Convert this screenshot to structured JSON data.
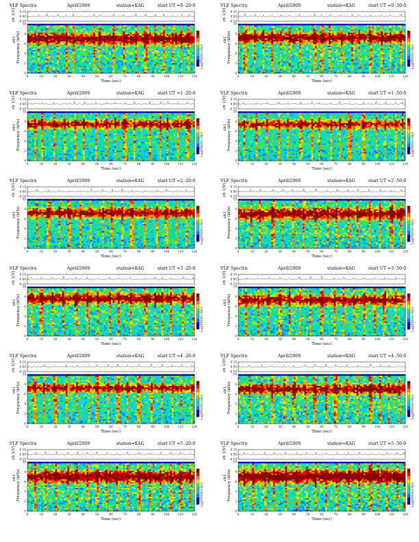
{
  "figure_title": "VLF Spectra",
  "date": "April/2009",
  "station": "station=KAG",
  "panel_titles": [
    "start  UT  =0 :20:0",
    "start  UT  =0 :50:0",
    "start  UT  =1 :20:0",
    "start  UT  =1 :50:0",
    "start  UT  =2 :20:0",
    "start  UT  =2 :50:0",
    "start  UT  =3 :20:0",
    "start  UT  =3 :50:0",
    "start  UT  =4 :20:0",
    "start  UT  =4 :50:0",
    "start  UT  =5 :20:0",
    "start  UT  =5 :50:0"
  ],
  "labels": {
    "waveform_ylabel": "ch 1(V)",
    "spectrum_ylabel_prefix": "ch1",
    "spectrum_ylabel": "Frequency  (kHz)",
    "xlabel": "Time  (sec)",
    "colorbar_label": "Log(PSD(V/√Hz))"
  },
  "colors": {
    "colormap": [
      "#00008b",
      "#0000ff",
      "#0080ff",
      "#00ccff",
      "#00e0a0",
      "#60e040",
      "#e8e800",
      "#ff8000",
      "#ff0000",
      "#8b0000"
    ]
  },
  "chart_data": [
    {
      "type": "heatmap",
      "panel": 1,
      "title": "start  UT  =0 :20:0",
      "x": [
        0,
        10,
        20,
        30,
        40,
        50,
        60,
        70,
        80,
        90,
        100,
        110,
        120
      ],
      "x_tick_labels": [
        "0",
        "10",
        "20",
        "30",
        "40",
        "50",
        "60",
        "70",
        "80",
        "90",
        "100",
        "110",
        "120"
      ],
      "y_ticks": [
        0,
        2,
        4,
        6,
        8,
        10
      ],
      "xlim": [
        0,
        120
      ],
      "ylim": [
        0,
        10
      ],
      "xlabel": "Time  (sec)",
      "ylabel": "Frequency  (kHz)",
      "waveform_ylim": [
        -0.1,
        0.1
      ],
      "waveform_ticks": [
        "-0.10",
        "0.00",
        "0.10"
      ],
      "colorbar": "Log(PSD(V/√Hz))",
      "band_center_khz": 7.0,
      "band_half_width_khz": 1.6,
      "band_strength": 0.9,
      "noise_level": 0.45,
      "spikes_at_sec": [
        8,
        14,
        22,
        28,
        33,
        48,
        52,
        62,
        69,
        78,
        85,
        92,
        98,
        104,
        111,
        116
      ]
    },
    {
      "type": "heatmap",
      "panel": 2,
      "title": "start  UT  =0 :50:0",
      "x": [
        0,
        10,
        20,
        30,
        40,
        50,
        60,
        70,
        80,
        90,
        100,
        110,
        120
      ],
      "x_tick_labels": [
        "0",
        "10",
        "20",
        "30",
        "40",
        "50",
        "60",
        "70",
        "80",
        "90",
        "100",
        "110",
        "120"
      ],
      "y_ticks": [
        0,
        2,
        4,
        6,
        8,
        10
      ],
      "xlim": [
        0,
        120
      ],
      "ylim": [
        0,
        10
      ],
      "xlabel": "Time  (sec)",
      "ylabel": "Frequency  (kHz)",
      "waveform_ylim": [
        -0.1,
        0.1
      ],
      "waveform_ticks": [
        "-0.10",
        "0.00",
        "0.10"
      ],
      "colorbar": "Log(PSD(V/√Hz))",
      "band_center_khz": 7.2,
      "band_half_width_khz": 1.5,
      "band_strength": 0.85,
      "noise_level": 0.45,
      "spikes_at_sec": [
        5,
        12,
        18,
        24,
        31,
        37,
        44,
        55,
        60,
        66,
        74,
        82,
        87,
        95,
        103,
        109,
        117
      ]
    },
    {
      "type": "heatmap",
      "panel": 3,
      "title": "start  UT  =1 :20:0",
      "x": [
        0,
        10,
        20,
        30,
        40,
        50,
        60,
        70,
        80,
        90,
        100,
        110,
        120
      ],
      "x_tick_labels": [
        "0",
        "10",
        "20",
        "30",
        "40",
        "50",
        "60",
        "70",
        "80",
        "90",
        "100",
        "110",
        "120"
      ],
      "y_ticks": [
        0,
        2,
        4,
        6,
        8,
        10
      ],
      "xlim": [
        0,
        120
      ],
      "ylim": [
        0,
        10
      ],
      "xlabel": "Time  (sec)",
      "ylabel": "Frequency  (kHz)",
      "waveform_ylim": [
        -0.1,
        0.1
      ],
      "waveform_ticks": [
        "-0.10",
        "0.00",
        "0.10"
      ],
      "colorbar": "Log(PSD(V/√Hz))",
      "band_center_khz": 7.4,
      "band_half_width_khz": 1.3,
      "band_strength": 0.75,
      "noise_level": 0.3,
      "spikes_at_sec": [
        6,
        11,
        19,
        27,
        34,
        41,
        49,
        57,
        63,
        70,
        77,
        88,
        96,
        101,
        108,
        115
      ]
    },
    {
      "type": "heatmap",
      "panel": 4,
      "title": "start  UT  =1 :50:0",
      "x": [
        0,
        10,
        20,
        30,
        40,
        50,
        60,
        70,
        80,
        90,
        100,
        110,
        120
      ],
      "x_tick_labels": [
        "0",
        "10",
        "20",
        "30",
        "40",
        "50",
        "60",
        "70",
        "80",
        "90",
        "100",
        "110",
        "120"
      ],
      "y_ticks": [
        0,
        2,
        4,
        6,
        8,
        10
      ],
      "xlim": [
        0,
        120
      ],
      "ylim": [
        0,
        10
      ],
      "xlabel": "Time  (sec)",
      "ylabel": "Frequency  (kHz)",
      "waveform_ylim": [
        -0.1,
        0.1
      ],
      "waveform_ticks": [
        "-0.10",
        "0.00",
        "0.10"
      ],
      "colorbar": "Log(PSD(V/√Hz))",
      "band_center_khz": 7.4,
      "band_half_width_khz": 1.3,
      "band_strength": 0.7,
      "noise_level": 0.3,
      "spikes_at_sec": [
        4,
        13,
        21,
        29,
        36,
        45,
        53,
        58,
        67,
        73,
        80,
        90,
        99,
        106,
        113,
        118
      ]
    },
    {
      "type": "heatmap",
      "panel": 5,
      "title": "start  UT  =2 :20:0",
      "x": [
        0,
        10,
        20,
        30,
        40,
        50,
        60,
        70,
        80,
        90,
        100,
        110,
        120
      ],
      "x_tick_labels": [
        "0",
        "10",
        "20",
        "30",
        "40",
        "50",
        "60",
        "70",
        "80",
        "90",
        "100",
        "110",
        "120"
      ],
      "y_ticks": [
        0,
        2,
        4,
        6,
        8,
        10
      ],
      "xlim": [
        0,
        120
      ],
      "ylim": [
        0,
        10
      ],
      "xlabel": "Time  (sec)",
      "ylabel": "Frequency  (kHz)",
      "waveform_ylim": [
        -0.1,
        0.1
      ],
      "waveform_ticks": [
        "-0.10",
        "0.00",
        "0.10"
      ],
      "colorbar": "Log(PSD(V/√Hz))",
      "band_center_khz": 7.2,
      "band_half_width_khz": 1.4,
      "band_strength": 0.8,
      "noise_level": 0.3,
      "spikes_at_sec": [
        7,
        15,
        23,
        30,
        38,
        46,
        54,
        61,
        68,
        75,
        84,
        93,
        100,
        107,
        114
      ]
    },
    {
      "type": "heatmap",
      "panel": 6,
      "title": "start  UT  =2 :50:0",
      "x": [
        0,
        10,
        20,
        30,
        40,
        50,
        60,
        70,
        80,
        90,
        100,
        110,
        120
      ],
      "x_tick_labels": [
        "0",
        "10",
        "20",
        "30",
        "40",
        "50",
        "60",
        "70",
        "80",
        "90",
        "100",
        "110",
        "120"
      ],
      "y_ticks": [
        0,
        2,
        4,
        6,
        8,
        10
      ],
      "xlim": [
        0,
        120
      ],
      "ylim": [
        0,
        10
      ],
      "xlabel": "Time  (sec)",
      "ylabel": "Frequency  (kHz)",
      "waveform_ylim": [
        -0.1,
        0.1
      ],
      "waveform_ticks": [
        "-0.10",
        "0.00",
        "0.10"
      ],
      "colorbar": "Log(PSD(V/√Hz))",
      "band_center_khz": 7.0,
      "band_half_width_khz": 1.6,
      "band_strength": 0.85,
      "noise_level": 0.45,
      "spikes_at_sec": [
        9,
        16,
        25,
        32,
        39,
        47,
        56,
        64,
        71,
        79,
        86,
        94,
        102,
        110,
        117
      ]
    },
    {
      "type": "heatmap",
      "panel": 7,
      "title": "start  UT  =3 :20:0",
      "x": [
        0,
        10,
        20,
        30,
        40,
        50,
        60,
        70,
        80,
        90,
        100,
        110,
        120
      ],
      "x_tick_labels": [
        "0",
        "10",
        "20",
        "30",
        "40",
        "50",
        "60",
        "70",
        "80",
        "90",
        "100",
        "110",
        "120"
      ],
      "y_ticks": [
        0,
        2,
        4,
        6,
        8,
        10
      ],
      "xlim": [
        0,
        120
      ],
      "ylim": [
        0,
        10
      ],
      "xlabel": "Time  (sec)",
      "ylabel": "Frequency  (kHz)",
      "waveform_ylim": [
        -0.1,
        0.1
      ],
      "waveform_ticks": [
        "-0.10",
        "0.00",
        "0.10"
      ],
      "colorbar": "Log(PSD(V/√Hz))",
      "band_center_khz": 7.6,
      "band_half_width_khz": 1.5,
      "band_strength": 0.85,
      "noise_level": 0.4,
      "spikes_at_sec": [
        3,
        10,
        18,
        26,
        35,
        43,
        51,
        59,
        66,
        74,
        85,
        92,
        97,
        103,
        112,
        119
      ]
    },
    {
      "type": "heatmap",
      "panel": 8,
      "title": "start  UT  =3 :50:0",
      "x": [
        0,
        10,
        20,
        30,
        40,
        50,
        60,
        70,
        80,
        90,
        100,
        110,
        120
      ],
      "x_tick_labels": [
        "0",
        "10",
        "20",
        "30",
        "40",
        "50",
        "60",
        "70",
        "80",
        "90",
        "100",
        "110",
        "120"
      ],
      "y_ticks": [
        0,
        2,
        4,
        6,
        8,
        10
      ],
      "xlim": [
        0,
        120
      ],
      "ylim": [
        0,
        10
      ],
      "xlabel": "Time  (sec)",
      "ylabel": "Frequency  (kHz)",
      "waveform_ylim": [
        -0.1,
        0.1
      ],
      "waveform_ticks": [
        "-0.10",
        "0.00",
        "0.10"
      ],
      "colorbar": "Log(PSD(V/√Hz))",
      "band_center_khz": 7.3,
      "band_half_width_khz": 1.5,
      "band_strength": 0.8,
      "noise_level": 0.4,
      "spikes_at_sec": [
        6,
        14,
        22,
        30,
        37,
        44,
        52,
        60,
        69,
        76,
        83,
        91,
        98,
        105,
        113
      ]
    },
    {
      "type": "heatmap",
      "panel": 9,
      "title": "start  UT  =4 :20:0",
      "x": [
        0,
        10,
        20,
        30,
        40,
        50,
        60,
        70,
        80,
        90,
        100,
        110,
        120
      ],
      "x_tick_labels": [
        "0",
        "10",
        "20",
        "30",
        "40",
        "50",
        "60",
        "70",
        "80",
        "90",
        "100",
        "110",
        "120"
      ],
      "y_ticks": [
        0,
        2,
        4,
        6,
        8,
        10
      ],
      "xlim": [
        0,
        120
      ],
      "ylim": [
        0,
        10
      ],
      "xlabel": "Time  (sec)",
      "ylabel": "Frequency  (kHz)",
      "waveform_ylim": [
        -0.1,
        0.1
      ],
      "waveform_ticks": [
        "-0.10",
        "0.00",
        "0.10"
      ],
      "colorbar": "Log(PSD(V/√Hz))",
      "band_center_khz": 7.2,
      "band_half_width_khz": 1.2,
      "band_strength": 0.75,
      "noise_level": 0.35,
      "spikes_at_sec": [
        5,
        12,
        20,
        28,
        36,
        44,
        50,
        58,
        65,
        72,
        80,
        89,
        97,
        104,
        111,
        118
      ]
    },
    {
      "type": "heatmap",
      "panel": 10,
      "title": "start  UT  =4 :50:0",
      "x": [
        0,
        10,
        20,
        30,
        40,
        50,
        60,
        70,
        80,
        90,
        100,
        110,
        120
      ],
      "x_tick_labels": [
        "0",
        "10",
        "20",
        "30",
        "40",
        "50",
        "60",
        "70",
        "80",
        "90",
        "100",
        "110",
        "120"
      ],
      "y_ticks": [
        0,
        2,
        4,
        6,
        8,
        10
      ],
      "xlim": [
        0,
        120
      ],
      "ylim": [
        0,
        10
      ],
      "xlabel": "Time  (sec)",
      "ylabel": "Frequency  (kHz)",
      "waveform_ylim": [
        -0.1,
        0.1
      ],
      "waveform_ticks": [
        "-0.10",
        "0.00",
        "0.10"
      ],
      "colorbar": "Log(PSD(V/√Hz))",
      "band_center_khz": 7.0,
      "band_half_width_khz": 1.4,
      "band_strength": 0.8,
      "noise_level": 0.5,
      "spikes_at_sec": [
        8,
        17,
        24,
        33,
        40,
        48,
        55,
        63,
        70,
        78,
        86,
        95,
        102,
        108,
        116
      ]
    },
    {
      "type": "heatmap",
      "panel": 11,
      "title": "start  UT  =5 :20:0",
      "x": [
        0,
        10,
        20,
        30,
        40,
        50,
        60,
        70,
        80,
        90,
        100,
        110,
        120
      ],
      "x_tick_labels": [
        "0",
        "10",
        "20",
        "30",
        "40",
        "50",
        "60",
        "70",
        "80",
        "90",
        "100",
        "110",
        "120"
      ],
      "y_ticks": [
        0,
        2,
        4,
        6,
        8,
        10
      ],
      "xlim": [
        0,
        120
      ],
      "ylim": [
        0,
        10
      ],
      "xlabel": "Time  (sec)",
      "ylabel": "Frequency  (kHz)",
      "waveform_ylim": [
        -0.1,
        0.1
      ],
      "waveform_ticks": [
        "-0.10",
        "0.00",
        "0.10"
      ],
      "colorbar": "Log(PSD(V/√Hz))",
      "band_center_khz": 7.0,
      "band_half_width_khz": 1.7,
      "band_strength": 0.9,
      "noise_level": 0.5,
      "spikes_at_sec": [
        6,
        13,
        21,
        29,
        36,
        43,
        50,
        57,
        64,
        72,
        80,
        88,
        96,
        103,
        110,
        117
      ]
    },
    {
      "type": "heatmap",
      "panel": 12,
      "title": "start  UT  =5 :50:0",
      "x": [
        0,
        10,
        20,
        30,
        40,
        50,
        60,
        70,
        80,
        90,
        100,
        110,
        120
      ],
      "x_tick_labels": [
        "0",
        "10",
        "20",
        "30",
        "40",
        "50",
        "60",
        "70",
        "80",
        "90",
        "100",
        "110",
        "120"
      ],
      "y_ticks": [
        0,
        2,
        4,
        6,
        8,
        10
      ],
      "xlim": [
        0,
        120
      ],
      "ylim": [
        0,
        10
      ],
      "xlabel": "Time  (sec)",
      "ylabel": "Frequency  (kHz)",
      "waveform_ylim": [
        -0.1,
        0.1
      ],
      "waveform_ticks": [
        "-0.10",
        "0.00",
        "0.10"
      ],
      "colorbar": "Log(PSD(V/√Hz))",
      "band_center_khz": 7.0,
      "band_half_width_khz": 1.8,
      "band_strength": 1.0,
      "noise_level": 0.5,
      "spikes_at_sec": [
        4,
        11,
        19,
        26,
        34,
        42,
        49,
        56,
        63,
        71,
        79,
        87,
        95,
        101,
        107,
        114,
        119
      ]
    }
  ]
}
